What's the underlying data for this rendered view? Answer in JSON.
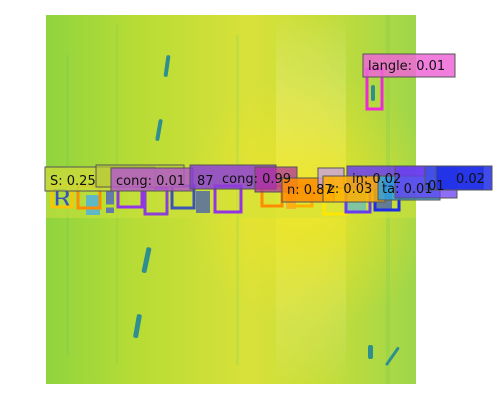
{
  "image": {
    "description_icon": "heatmap-text-image",
    "palette": [
      "#c9df34",
      "#a6d939",
      "#74cf55",
      "#2f9d8c",
      "#ffe61e"
    ]
  },
  "detections": [
    {
      "label": "langle: 0.01",
      "color": "#ee66d6"
    },
    {
      "label": "S: 0.25",
      "color": "#c8d93a"
    },
    {
      "label": "cong: 0.01",
      "color": "#b45ac8"
    },
    {
      "label": "87",
      "color": "#8c3ed8"
    },
    {
      "label": "cong: 0.99",
      "color": "#9433e5"
    },
    {
      "label": "n: 0.87",
      "color": "#ff8c00"
    },
    {
      "label": "z: 0.03",
      "color": "#ffb000"
    },
    {
      "label": "in: 0.02",
      "color": "#6a3cf0"
    },
    {
      "label": "ta: 0.01",
      "color": "#2a9fe0"
    },
    {
      "label": "01",
      "color": "#6a3cf0"
    },
    {
      "label": "0.02",
      "color": "#1d2de8"
    }
  ]
}
